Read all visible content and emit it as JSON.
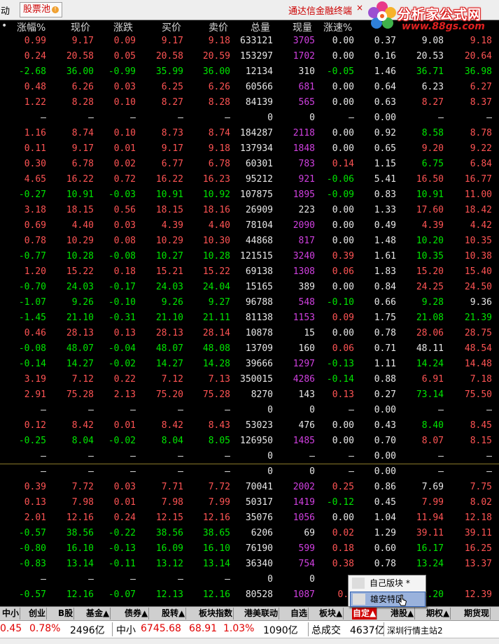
{
  "topbar": {
    "prefix": "动",
    "pool_tab": "股票池",
    "pool_icon": "!",
    "ad_text": "通达信金融终端",
    "close_glyph": "×",
    "logo_title": "分析家公式网",
    "logo_url": "www.88gs.com"
  },
  "columns": [
    "•",
    "涨幅%",
    "现价",
    "涨跌",
    "买价",
    "卖价",
    "总量",
    "现量",
    "涨速%",
    "",
    "",
    ""
  ],
  "rows": [
    {
      "pct": "0.99",
      "price": "9.17",
      "chg": "0.09",
      "bid": "9.17",
      "ask": "9.18",
      "vol": "633121",
      "cur": "3705",
      "spd": "0.00",
      "a": "0.37",
      "b": "9.08",
      "c": "9.18",
      "dir": "up",
      "cur_color": "magenta",
      "spd_color": "white",
      "a_color": "white",
      "b_color": "white",
      "c_color": "red"
    },
    {
      "pct": "0.24",
      "price": "20.58",
      "chg": "0.05",
      "bid": "20.58",
      "ask": "20.59",
      "vol": "153297",
      "cur": "1702",
      "spd": "0.00",
      "a": "0.16",
      "b": "20.53",
      "c": "20.64",
      "dir": "up",
      "cur_color": "magenta",
      "spd_color": "white",
      "a_color": "white",
      "b_color": "white",
      "c_color": "red"
    },
    {
      "pct": "-2.68",
      "price": "36.00",
      "chg": "-0.99",
      "bid": "35.99",
      "ask": "36.00",
      "vol": "12134",
      "cur": "310",
      "spd": "-0.05",
      "a": "1.46",
      "b": "36.71",
      "c": "36.98",
      "dir": "down",
      "cur_color": "white",
      "spd_color": "green",
      "a_color": "white",
      "b_color": "green",
      "c_color": "green"
    },
    {
      "pct": "0.48",
      "price": "6.26",
      "chg": "0.03",
      "bid": "6.25",
      "ask": "6.26",
      "vol": "60566",
      "cur": "681",
      "spd": "0.00",
      "a": "0.64",
      "b": "6.23",
      "c": "6.27",
      "dir": "up",
      "cur_color": "magenta",
      "spd_color": "white",
      "a_color": "white",
      "b_color": "white",
      "c_color": "red"
    },
    {
      "pct": "1.22",
      "price": "8.28",
      "chg": "0.10",
      "bid": "8.27",
      "ask": "8.28",
      "vol": "84139",
      "cur": "565",
      "spd": "0.00",
      "a": "0.63",
      "b": "8.27",
      "c": "8.37",
      "dir": "up",
      "cur_color": "magenta",
      "spd_color": "white",
      "a_color": "white",
      "b_color": "red",
      "c_color": "red"
    },
    {
      "pct": "—",
      "price": "—",
      "chg": "—",
      "bid": "—",
      "ask": "—",
      "vol": "0",
      "cur": "0",
      "spd": "—",
      "a": "0.00",
      "b": "—",
      "c": "—",
      "dir": "none",
      "cur_color": "white",
      "spd_color": "white",
      "a_color": "white",
      "b_color": "white",
      "c_color": "white"
    },
    {
      "pct": "1.16",
      "price": "8.74",
      "chg": "0.10",
      "bid": "8.73",
      "ask": "8.74",
      "vol": "184287",
      "cur": "2118",
      "spd": "0.00",
      "a": "0.92",
      "b": "8.58",
      "c": "8.78",
      "dir": "up",
      "cur_color": "magenta",
      "spd_color": "white",
      "a_color": "white",
      "b_color": "green",
      "c_color": "red"
    },
    {
      "pct": "0.11",
      "price": "9.17",
      "chg": "0.01",
      "bid": "9.17",
      "ask": "9.18",
      "vol": "137934",
      "cur": "1848",
      "spd": "0.00",
      "a": "0.65",
      "b": "9.20",
      "c": "9.22",
      "dir": "up",
      "cur_color": "magenta",
      "spd_color": "white",
      "a_color": "white",
      "b_color": "red",
      "c_color": "red"
    },
    {
      "pct": "0.30",
      "price": "6.78",
      "chg": "0.02",
      "bid": "6.77",
      "ask": "6.78",
      "vol": "60301",
      "cur": "783",
      "spd": "0.14",
      "a": "1.15",
      "b": "6.75",
      "c": "6.84",
      "dir": "up",
      "cur_color": "magenta",
      "spd_color": "red",
      "a_color": "white",
      "b_color": "green",
      "c_color": "red"
    },
    {
      "pct": "4.65",
      "price": "16.22",
      "chg": "0.72",
      "bid": "16.22",
      "ask": "16.23",
      "vol": "95212",
      "cur": "921",
      "spd": "-0.06",
      "a": "5.41",
      "b": "16.50",
      "c": "16.77",
      "dir": "up",
      "cur_color": "magenta",
      "spd_color": "green",
      "a_color": "white",
      "b_color": "red",
      "c_color": "red"
    },
    {
      "pct": "-0.27",
      "price": "10.91",
      "chg": "-0.03",
      "bid": "10.91",
      "ask": "10.92",
      "vol": "107875",
      "cur": "1895",
      "spd": "-0.09",
      "a": "0.83",
      "b": "10.91",
      "c": "11.00",
      "dir": "down",
      "cur_color": "magenta",
      "spd_color": "green",
      "a_color": "white",
      "b_color": "green",
      "c_color": "red"
    },
    {
      "pct": "3.18",
      "price": "18.15",
      "chg": "0.56",
      "bid": "18.15",
      "ask": "18.16",
      "vol": "26909",
      "cur": "223",
      "spd": "0.00",
      "a": "1.33",
      "b": "17.60",
      "c": "18.42",
      "dir": "up",
      "cur_color": "white",
      "spd_color": "white",
      "a_color": "white",
      "b_color": "red",
      "c_color": "red"
    },
    {
      "pct": "0.69",
      "price": "4.40",
      "chg": "0.03",
      "bid": "4.39",
      "ask": "4.40",
      "vol": "78104",
      "cur": "2090",
      "spd": "0.00",
      "a": "0.49",
      "b": "4.39",
      "c": "4.42",
      "dir": "up",
      "cur_color": "magenta",
      "spd_color": "white",
      "a_color": "white",
      "b_color": "red",
      "c_color": "red"
    },
    {
      "pct": "0.78",
      "price": "10.29",
      "chg": "0.08",
      "bid": "10.29",
      "ask": "10.30",
      "vol": "44868",
      "cur": "817",
      "spd": "0.00",
      "a": "1.48",
      "b": "10.20",
      "c": "10.35",
      "dir": "up",
      "cur_color": "magenta",
      "spd_color": "white",
      "a_color": "white",
      "b_color": "green",
      "c_color": "red"
    },
    {
      "pct": "-0.77",
      "price": "10.28",
      "chg": "-0.08",
      "bid": "10.27",
      "ask": "10.28",
      "vol": "121515",
      "cur": "3240",
      "spd": "0.39",
      "a": "1.61",
      "b": "10.35",
      "c": "10.38",
      "dir": "down",
      "cur_color": "magenta",
      "spd_color": "red",
      "a_color": "white",
      "b_color": "green",
      "c_color": "red"
    },
    {
      "pct": "1.20",
      "price": "15.22",
      "chg": "0.18",
      "bid": "15.21",
      "ask": "15.22",
      "vol": "69138",
      "cur": "1308",
      "spd": "0.06",
      "a": "1.83",
      "b": "15.20",
      "c": "15.40",
      "dir": "up",
      "cur_color": "magenta",
      "spd_color": "red",
      "a_color": "white",
      "b_color": "red",
      "c_color": "red"
    },
    {
      "pct": "-0.70",
      "price": "24.03",
      "chg": "-0.17",
      "bid": "24.03",
      "ask": "24.04",
      "vol": "15165",
      "cur": "389",
      "spd": "0.00",
      "a": "0.84",
      "b": "24.25",
      "c": "24.50",
      "dir": "down",
      "cur_color": "white",
      "spd_color": "white",
      "a_color": "white",
      "b_color": "red",
      "c_color": "red"
    },
    {
      "pct": "-1.07",
      "price": "9.26",
      "chg": "-0.10",
      "bid": "9.26",
      "ask": "9.27",
      "vol": "96788",
      "cur": "548",
      "spd": "-0.10",
      "a": "0.66",
      "b": "9.28",
      "c": "9.36",
      "dir": "down",
      "cur_color": "magenta",
      "spd_color": "green",
      "a_color": "white",
      "b_color": "green",
      "c_color": "white"
    },
    {
      "pct": "-1.45",
      "price": "21.10",
      "chg": "-0.31",
      "bid": "21.10",
      "ask": "21.11",
      "vol": "81138",
      "cur": "1153",
      "spd": "0.09",
      "a": "1.75",
      "b": "21.08",
      "c": "21.39",
      "dir": "down",
      "cur_color": "magenta",
      "spd_color": "red",
      "a_color": "white",
      "b_color": "green",
      "c_color": "green"
    },
    {
      "pct": "0.46",
      "price": "28.13",
      "chg": "0.13",
      "bid": "28.13",
      "ask": "28.14",
      "vol": "10878",
      "cur": "15",
      "spd": "0.00",
      "a": "0.78",
      "b": "28.06",
      "c": "28.75",
      "dir": "up",
      "cur_color": "white",
      "spd_color": "white",
      "a_color": "white",
      "b_color": "red",
      "c_color": "red"
    },
    {
      "pct": "-0.08",
      "price": "48.07",
      "chg": "-0.04",
      "bid": "48.07",
      "ask": "48.08",
      "vol": "13709",
      "cur": "160",
      "spd": "0.06",
      "a": "0.71",
      "b": "48.11",
      "c": "48.54",
      "dir": "down",
      "cur_color": "white",
      "spd_color": "red",
      "a_color": "white",
      "b_color": "white",
      "c_color": "red"
    },
    {
      "pct": "-0.14",
      "price": "14.27",
      "chg": "-0.02",
      "bid": "14.27",
      "ask": "14.28",
      "vol": "39666",
      "cur": "1297",
      "spd": "-0.13",
      "a": "1.11",
      "b": "14.24",
      "c": "14.48",
      "dir": "down",
      "cur_color": "magenta",
      "spd_color": "green",
      "a_color": "white",
      "b_color": "green",
      "c_color": "red"
    },
    {
      "pct": "3.19",
      "price": "7.12",
      "chg": "0.22",
      "bid": "7.12",
      "ask": "7.13",
      "vol": "350015",
      "cur": "4286",
      "spd": "-0.14",
      "a": "0.88",
      "b": "6.91",
      "c": "7.18",
      "dir": "up",
      "cur_color": "magenta",
      "spd_color": "green",
      "a_color": "white",
      "b_color": "red",
      "c_color": "red"
    },
    {
      "pct": "2.91",
      "price": "75.28",
      "chg": "2.13",
      "bid": "75.20",
      "ask": "75.28",
      "vol": "8270",
      "cur": "143",
      "spd": "0.13",
      "a": "0.27",
      "b": "73.14",
      "c": "75.50",
      "dir": "up",
      "cur_color": "white",
      "spd_color": "red",
      "a_color": "white",
      "b_color": "green",
      "c_color": "red"
    },
    {
      "pct": "—",
      "price": "—",
      "chg": "—",
      "bid": "—",
      "ask": "—",
      "vol": "0",
      "cur": "0",
      "spd": "—",
      "a": "0.00",
      "b": "—",
      "c": "—",
      "dir": "none",
      "cur_color": "white",
      "spd_color": "white",
      "a_color": "white",
      "b_color": "white",
      "c_color": "white"
    },
    {
      "pct": "0.12",
      "price": "8.42",
      "chg": "0.01",
      "bid": "8.42",
      "ask": "8.43",
      "vol": "53023",
      "cur": "476",
      "spd": "0.00",
      "a": "0.43",
      "b": "8.40",
      "c": "8.45",
      "dir": "up",
      "cur_color": "white",
      "spd_color": "white",
      "a_color": "white",
      "b_color": "green",
      "c_color": "red"
    },
    {
      "pct": "-0.25",
      "price": "8.04",
      "chg": "-0.02",
      "bid": "8.04",
      "ask": "8.05",
      "vol": "126950",
      "cur": "1485",
      "spd": "0.00",
      "a": "0.70",
      "b": "8.07",
      "c": "8.15",
      "dir": "down",
      "cur_color": "magenta",
      "spd_color": "white",
      "a_color": "white",
      "b_color": "red",
      "c_color": "red"
    },
    {
      "pct": "—",
      "price": "—",
      "chg": "—",
      "bid": "—",
      "ask": "—",
      "vol": "0",
      "cur": "—",
      "spd": "—",
      "a": "0.00",
      "b": "—",
      "c": "—",
      "dir": "none",
      "cur_color": "white",
      "spd_color": "white",
      "a_color": "white",
      "b_color": "white",
      "c_color": "white"
    },
    {
      "pct": "—",
      "price": "—",
      "chg": "—",
      "bid": "—",
      "ask": "—",
      "vol": "0",
      "cur": "0",
      "spd": "—",
      "a": "0.00",
      "b": "—",
      "c": "—",
      "dir": "none",
      "cur_color": "white",
      "spd_color": "white",
      "a_color": "white",
      "b_color": "white",
      "c_color": "white"
    },
    {
      "pct": "0.39",
      "price": "7.72",
      "chg": "0.03",
      "bid": "7.71",
      "ask": "7.72",
      "vol": "70041",
      "cur": "2002",
      "spd": "0.25",
      "a": "0.86",
      "b": "7.69",
      "c": "7.75",
      "dir": "up",
      "cur_color": "magenta",
      "spd_color": "red",
      "a_color": "white",
      "b_color": "white",
      "c_color": "red"
    },
    {
      "pct": "0.13",
      "price": "7.98",
      "chg": "0.01",
      "bid": "7.98",
      "ask": "7.99",
      "vol": "50317",
      "cur": "1419",
      "spd": "-0.12",
      "a": "0.45",
      "b": "7.99",
      "c": "8.02",
      "dir": "up",
      "cur_color": "magenta",
      "spd_color": "green",
      "a_color": "white",
      "b_color": "red",
      "c_color": "red"
    },
    {
      "pct": "2.01",
      "price": "12.16",
      "chg": "0.24",
      "bid": "12.15",
      "ask": "12.16",
      "vol": "35076",
      "cur": "1056",
      "spd": "0.00",
      "a": "1.04",
      "b": "11.94",
      "c": "12.18",
      "dir": "up",
      "cur_color": "magenta",
      "spd_color": "white",
      "a_color": "white",
      "b_color": "red",
      "c_color": "red"
    },
    {
      "pct": "-0.57",
      "price": "38.56",
      "chg": "-0.22",
      "bid": "38.56",
      "ask": "38.65",
      "vol": "6206",
      "cur": "69",
      "spd": "0.02",
      "a": "1.29",
      "b": "39.11",
      "c": "39.11",
      "dir": "down",
      "cur_color": "white",
      "spd_color": "red",
      "a_color": "white",
      "b_color": "red",
      "c_color": "red"
    },
    {
      "pct": "-0.80",
      "price": "16.10",
      "chg": "-0.13",
      "bid": "16.09",
      "ask": "16.10",
      "vol": "76190",
      "cur": "599",
      "spd": "0.18",
      "a": "0.60",
      "b": "16.17",
      "c": "16.25",
      "dir": "down",
      "cur_color": "magenta",
      "spd_color": "red",
      "a_color": "white",
      "b_color": "green",
      "c_color": "red"
    },
    {
      "pct": "-0.83",
      "price": "13.14",
      "chg": "-0.11",
      "bid": "13.12",
      "ask": "13.14",
      "vol": "36340",
      "cur": "754",
      "spd": "0.38",
      "a": "0.78",
      "b": "13.24",
      "c": "13.37",
      "dir": "down",
      "cur_color": "magenta",
      "spd_color": "red",
      "a_color": "white",
      "b_color": "green",
      "c_color": "red"
    },
    {
      "pct": "—",
      "price": "—",
      "chg": "—",
      "bid": "—",
      "ask": "—",
      "vol": "0",
      "cur": "0",
      "spd": "",
      "a": "",
      "b": "",
      "c": "",
      "dir": "none",
      "cur_color": "white",
      "spd_color": "white",
      "a_color": "white",
      "b_color": "white",
      "c_color": "white"
    },
    {
      "pct": "-0.57",
      "price": "12.16",
      "chg": "-0.07",
      "bid": "12.13",
      "ask": "12.16",
      "vol": "80528",
      "cur": "1087",
      "spd": "0.2",
      "a": "",
      "b": "2.20",
      "c": "12.39",
      "dir": "down",
      "cur_color": "magenta",
      "spd_color": "red",
      "a_color": "white",
      "b_color": "green",
      "c_color": "red"
    }
  ],
  "tabs": [
    "中小",
    "创业",
    "B股",
    "基金▲",
    "债券▲",
    "股转▲",
    "板块指数",
    "港美联动",
    "自选",
    "板块▲",
    "自定▲",
    "港股▲",
    "期权▲",
    "期货现"
  ],
  "active_tab": "自定▲",
  "statusbar": {
    "idx1_pct_value": "0.45",
    "idx1_pct": "0.78%",
    "idx1_amount": "2496亿",
    "idx2_name": "中小",
    "idx2_value": "6745.68",
    "idx2_chg": "68.91",
    "idx2_pct": "1.03%",
    "idx2_amount": "1090亿",
    "total_label": "总成交",
    "total_amount": "4637亿",
    "server": "深圳行情主站2"
  },
  "popup": {
    "items": [
      "自己版块 *",
      "雄安特区"
    ]
  },
  "colors": {
    "up": "#ff5454",
    "down": "#00e600",
    "neutral": "#e8e8e8",
    "volume": "#d040e0",
    "background": "#000000"
  }
}
